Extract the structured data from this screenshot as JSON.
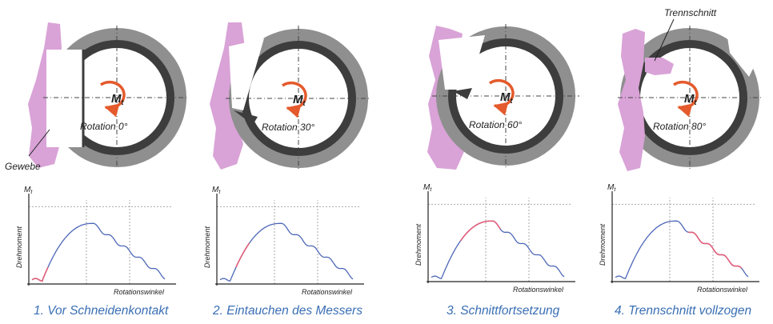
{
  "labels": {
    "tissue": "Gewebe",
    "cut": "Trennschnitt",
    "moment": "M",
    "moment_sub": "t",
    "y_axis": "Drehmoment",
    "x_axis": "Rotationswinkel"
  },
  "colors": {
    "tissue": "#d9a3d7",
    "ring_outer": "#8f8f8f",
    "ring_inner": "#3d3d3d",
    "arrow": "#e45a2c",
    "curve": "#4d67b8",
    "highlight": "#e2607a",
    "caption": "#3a6fb4"
  },
  "panels": [
    {
      "rotation": "Rotation 0°",
      "caption": "1. Vor Schneidenkontakt",
      "highlight": [
        0.0,
        0.12
      ]
    },
    {
      "rotation": "Rotation 30°",
      "caption": "2. Eintauchen des Messers",
      "highlight": [
        0.12,
        0.22
      ]
    },
    {
      "rotation": "Rotation 60°",
      "caption": "3. Schnittfortsetzung",
      "highlight": [
        0.22,
        0.52
      ]
    },
    {
      "rotation": "Rotation 80°",
      "caption": "4. Trennschnitt vollzogen",
      "highlight": [
        0.55,
        0.95
      ]
    }
  ]
}
